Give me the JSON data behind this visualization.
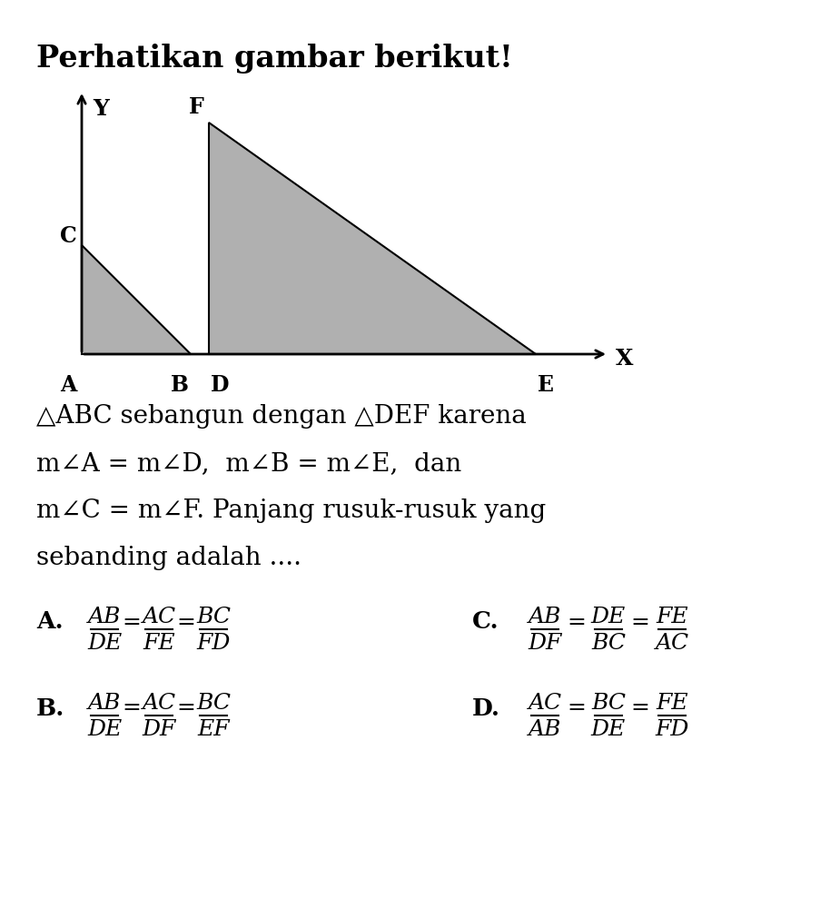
{
  "title": "Perhatikan gambar berikut!",
  "bg_color": "#ffffff",
  "triangle_fill": "#b0b0b0",
  "triangle_edge": "#000000",
  "desc_line1": "△ABC sebangun dengan △DEF karena",
  "desc_line2": "m∠A = m∠D,  m∠B = m∠E,  dan",
  "desc_line3": "m∠C = m∠F. Panjang rusuk-rusuk yang",
  "desc_line4": "sebanding adalah ....",
  "opt_A_label": "A.",
  "opt_A_n1": "AB",
  "opt_A_d1": "DE",
  "opt_A_n2": "AC",
  "opt_A_d2": "FE",
  "opt_A_n3": "BC",
  "opt_A_d3": "FD",
  "opt_B_label": "B.",
  "opt_B_n1": "AB",
  "opt_B_d1": "DE",
  "opt_B_n2": "AC",
  "opt_B_d2": "DF",
  "opt_B_n3": "BC",
  "opt_B_d3": "EF",
  "opt_C_label": "C.",
  "opt_C_n1": "AB",
  "opt_C_d1": "DF",
  "opt_C_n2": "DE",
  "opt_C_d2": "BC",
  "opt_C_n3": "FE",
  "opt_C_d3": "AC",
  "opt_D_label": "D.",
  "opt_D_n1": "AC",
  "opt_D_d1": "AB",
  "opt_D_n2": "BC",
  "opt_D_d2": "DE",
  "opt_D_n3": "FE",
  "opt_D_d3": "FD"
}
